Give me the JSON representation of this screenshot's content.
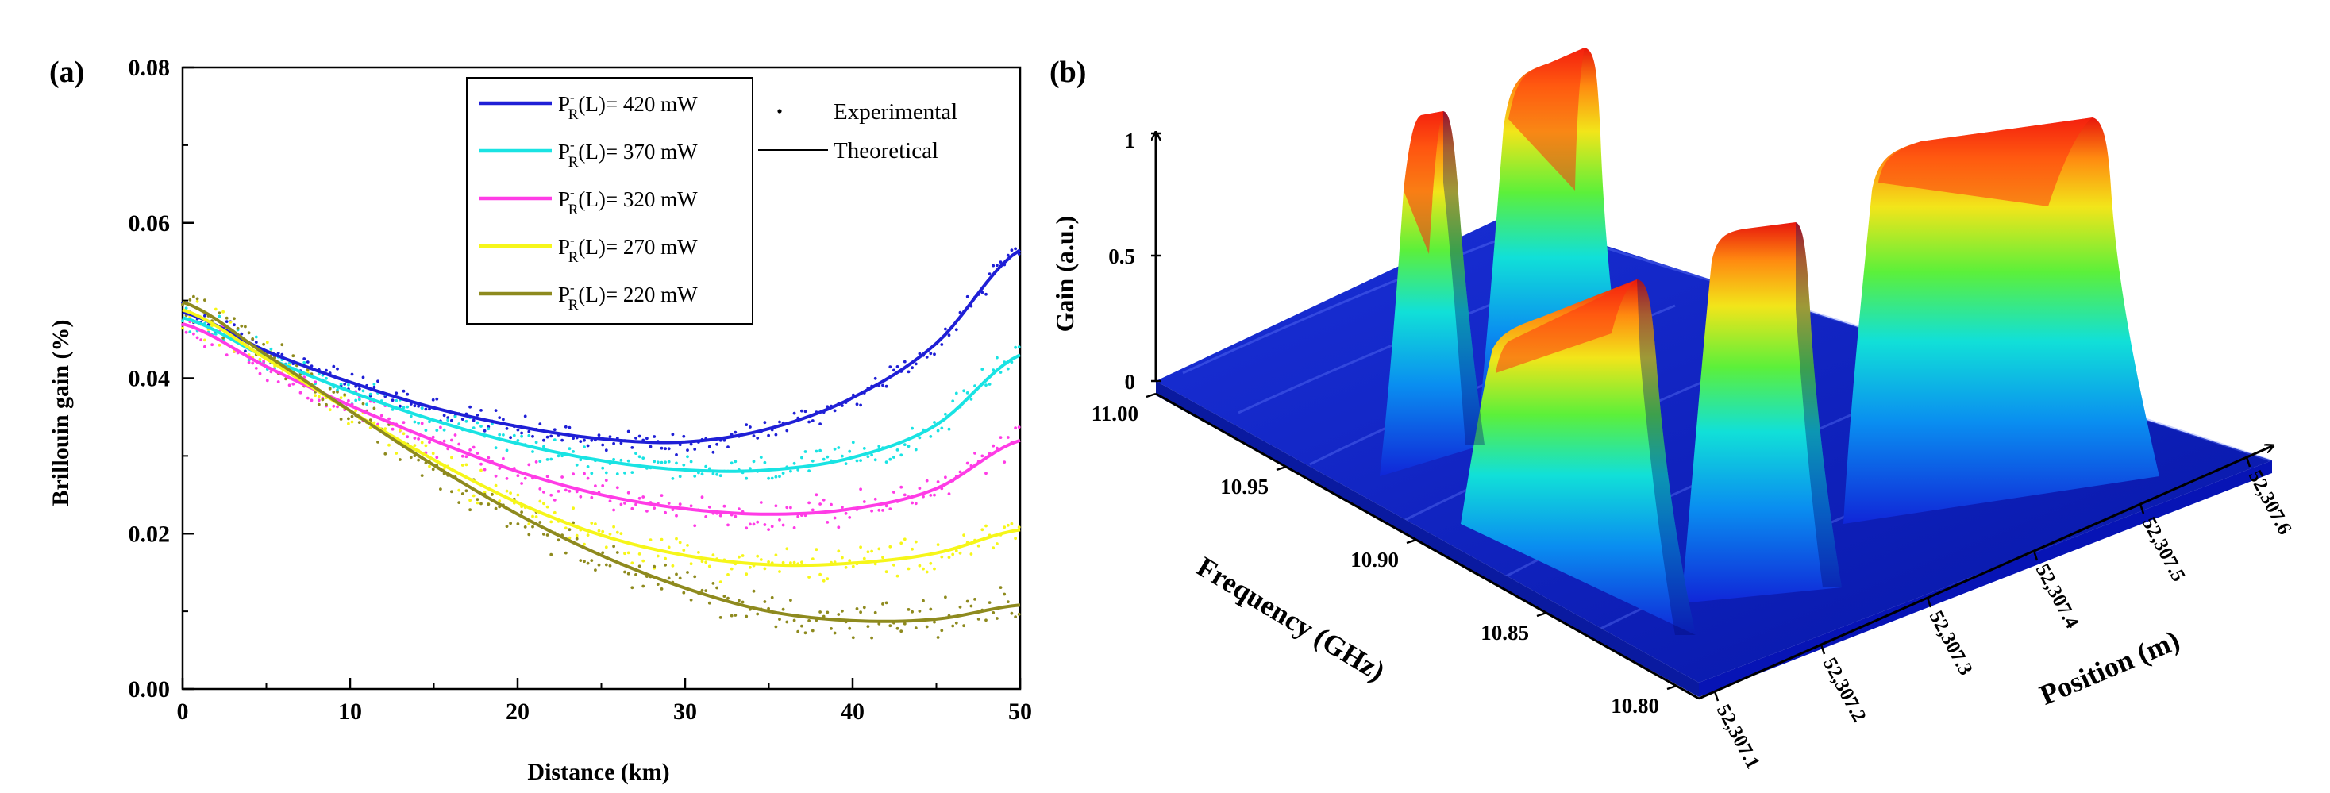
{
  "panel_a": {
    "label": "(a)",
    "legend": {
      "experimental": "Experimental",
      "theoretical": "Theoretical",
      "power_prefix_main": "P",
      "power_prefix_sup": "-",
      "power_prefix_sub": "R",
      "power_mid": "(L)= "
    }
  },
  "panel_b": {
    "label": "(b)"
  },
  "colors": {
    "series_420": "#1f1fd6",
    "series_370": "#19e3e3",
    "series_320": "#ff3ce6",
    "series_270": "#f6f61a",
    "series_220": "#8e8a1e",
    "surface_low": "#0a20c8",
    "surface_high": "#e81010"
  },
  "chart_data": [
    {
      "type": "line+scatter",
      "title": "",
      "xlabel": "Distance (km)",
      "ylabel": "Brillouin gain (%)",
      "xlim": [
        0,
        50
      ],
      "ylim": [
        0,
        0.08
      ],
      "xticks": [
        "0",
        "10",
        "20",
        "30",
        "40",
        "50"
      ],
      "yticks": [
        "0.00",
        "0.02",
        "0.04",
        "0.06",
        "0.08"
      ],
      "grid": false,
      "legend_position": "top-right",
      "x": [
        0,
        5,
        10,
        15,
        20,
        25,
        30,
        35,
        40,
        45,
        50
      ],
      "series": [
        {
          "name": "420 mW",
          "power": "420 mW",
          "values": [
            0.0485,
            0.0435,
            0.0395,
            0.0362,
            0.0338,
            0.0322,
            0.0318,
            0.0335,
            0.0375,
            0.0445,
            0.0565
          ]
        },
        {
          "name": "370 mW",
          "power": "370 mW",
          "values": [
            0.0478,
            0.0427,
            0.0383,
            0.0346,
            0.0316,
            0.0294,
            0.0282,
            0.0282,
            0.0298,
            0.034,
            0.043
          ]
        },
        {
          "name": "320 mW",
          "power": "320 mW",
          "values": [
            0.047,
            0.0415,
            0.0365,
            0.032,
            0.028,
            0.025,
            0.0232,
            0.0225,
            0.0232,
            0.0258,
            0.032
          ]
        },
        {
          "name": "270 mW",
          "power": "270 mW",
          "values": [
            0.0488,
            0.0425,
            0.0358,
            0.0295,
            0.024,
            0.0198,
            0.0172,
            0.016,
            0.0162,
            0.0175,
            0.0205
          ]
        },
        {
          "name": "220 mW",
          "power": "220 mW",
          "values": [
            0.0498,
            0.043,
            0.0358,
            0.0288,
            0.0225,
            0.0172,
            0.013,
            0.01,
            0.0088,
            0.009,
            0.0108
          ]
        }
      ]
    },
    {
      "type": "surface3d",
      "title": "",
      "zlabel": "Gain (a.u.)",
      "ylabel": "Frequency (GHz)",
      "xlabel": "Position (m)",
      "zticks": [
        "0",
        "0.5",
        "1"
      ],
      "freq_ticks": [
        "11.00",
        "10.95",
        "10.90",
        "10.85",
        "10.80"
      ],
      "pos_ticks": [
        "52,307.1",
        "52,307.2",
        "52,307.3",
        "52,307.4",
        "52,307.5",
        "52,307.6"
      ],
      "zlim": [
        0,
        1
      ]
    }
  ]
}
